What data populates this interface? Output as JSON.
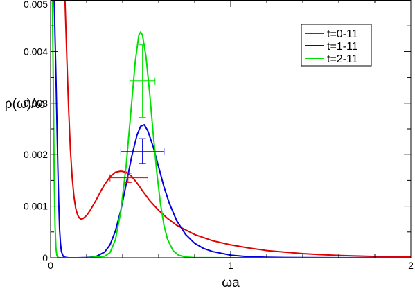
{
  "chart_data": {
    "type": "line",
    "xlabel": "ωa",
    "ylabel": "ρ(ω)/ω",
    "xlim": [
      0,
      2
    ],
    "ylim": [
      0,
      0.005
    ],
    "x_ticks": [
      0,
      1,
      2
    ],
    "x_tick_labels": [
      "0",
      "1",
      "2"
    ],
    "y_ticks": [
      0,
      0.001,
      0.002,
      0.003,
      0.004,
      0.005
    ],
    "y_tick_labels": [
      "0",
      "0.001",
      "0.002",
      "0.003",
      "0.004",
      "0.005"
    ],
    "grid": false,
    "legend_position": "top-right",
    "series": [
      {
        "name": "t=0-11",
        "color": "#e00000",
        "x": [
          0.08,
          0.09,
          0.1,
          0.11,
          0.12,
          0.13,
          0.14,
          0.15,
          0.16,
          0.17,
          0.18,
          0.2,
          0.22,
          0.25,
          0.28,
          0.3,
          0.33,
          0.36,
          0.39,
          0.42,
          0.45,
          0.48,
          0.51,
          0.55,
          0.6,
          0.65,
          0.7,
          0.8,
          0.9,
          1.0,
          1.1,
          1.2,
          1.3,
          1.4,
          1.5,
          1.6,
          1.7,
          1.8,
          1.9,
          2.0
        ],
        "y": [
          0.005,
          0.0039,
          0.0029,
          0.0021,
          0.00155,
          0.00118,
          0.00095,
          0.00083,
          0.00077,
          0.00075,
          0.00076,
          0.00082,
          0.00092,
          0.0011,
          0.0013,
          0.00142,
          0.00157,
          0.00166,
          0.00168,
          0.00166,
          0.00158,
          0.00145,
          0.0013,
          0.00111,
          0.00092,
          0.00076,
          0.00063,
          0.00045,
          0.00033,
          0.00025,
          0.00019,
          0.00014,
          0.00011,
          8e-05,
          6e-05,
          4.5e-05,
          3.5e-05,
          2.5e-05,
          2e-05,
          1.5e-05
        ]
      },
      {
        "name": "t=1-11",
        "color": "#0000e0",
        "x": [
          0.02,
          0.03,
          0.04,
          0.045,
          0.05,
          0.055,
          0.06,
          0.07,
          0.08,
          0.1,
          0.15,
          0.2,
          0.25,
          0.3,
          0.33,
          0.36,
          0.39,
          0.42,
          0.45,
          0.48,
          0.5,
          0.52,
          0.54,
          0.57,
          0.6,
          0.63,
          0.66,
          0.7,
          0.75,
          0.8,
          0.85,
          0.9,
          1.0,
          1.1,
          1.2,
          1.3,
          1.4,
          1.6,
          1.8,
          2.0
        ],
        "y": [
          0.005,
          0.0035,
          0.0018,
          0.0011,
          0.00055,
          0.00028,
          0.00012,
          3e-05,
          1e-05,
          0.0,
          0.0,
          5e-06,
          2e-05,
          0.00011,
          0.00025,
          0.00052,
          0.00092,
          0.00143,
          0.00196,
          0.00238,
          0.00255,
          0.00258,
          0.00246,
          0.00215,
          0.00176,
          0.00137,
          0.00105,
          0.00072,
          0.00045,
          0.00028,
          0.00018,
          0.00012,
          5e-05,
          2e-05,
          1e-05,
          5e-06,
          3e-06,
          2e-06,
          1e-06,
          0.0
        ]
      },
      {
        "name": "t=2-11",
        "color": "#00e000",
        "x": [
          0.01,
          0.015,
          0.02,
          0.025,
          0.03,
          0.035,
          0.04,
          0.05,
          0.1,
          0.2,
          0.3,
          0.33,
          0.36,
          0.39,
          0.42,
          0.45,
          0.47,
          0.49,
          0.5,
          0.51,
          0.53,
          0.55,
          0.57,
          0.59,
          0.61,
          0.63,
          0.65,
          0.68,
          0.71,
          0.75,
          0.8,
          0.9,
          1.0,
          1.2,
          1.5,
          2.0
        ],
        "y": [
          0.005,
          0.0034,
          0.0016,
          0.0006,
          0.00018,
          4e-05,
          1e-05,
          0.0,
          0.0,
          0.0,
          3e-05,
          0.0001,
          0.00035,
          0.0009,
          0.0018,
          0.003,
          0.0038,
          0.00432,
          0.00438,
          0.00432,
          0.0039,
          0.0032,
          0.0024,
          0.00165,
          0.00105,
          0.00062,
          0.00035,
          0.00014,
          5e-05,
          1.5e-05,
          4e-06,
          1e-06,
          0.0,
          0.0,
          0.0,
          0.0
        ]
      }
    ],
    "error_points": [
      {
        "series": "t=0-11",
        "color": "#e00000",
        "x": 0.43,
        "y": 0.00155,
        "x_err": [
          0.33,
          0.54
        ],
        "y_err": [
          0.00146,
          0.00164
        ]
      },
      {
        "series": "t=1-11",
        "color": "#0000e0",
        "x": 0.51,
        "y": 0.00206,
        "x_err": [
          0.39,
          0.63
        ],
        "y_err": [
          0.00183,
          0.00231
        ]
      },
      {
        "series": "t=2-11",
        "color": "#00e000",
        "x": 0.51,
        "y": 0.00343,
        "x_err": [
          0.44,
          0.58
        ],
        "y_err": [
          0.00272,
          0.00413
        ]
      }
    ]
  }
}
